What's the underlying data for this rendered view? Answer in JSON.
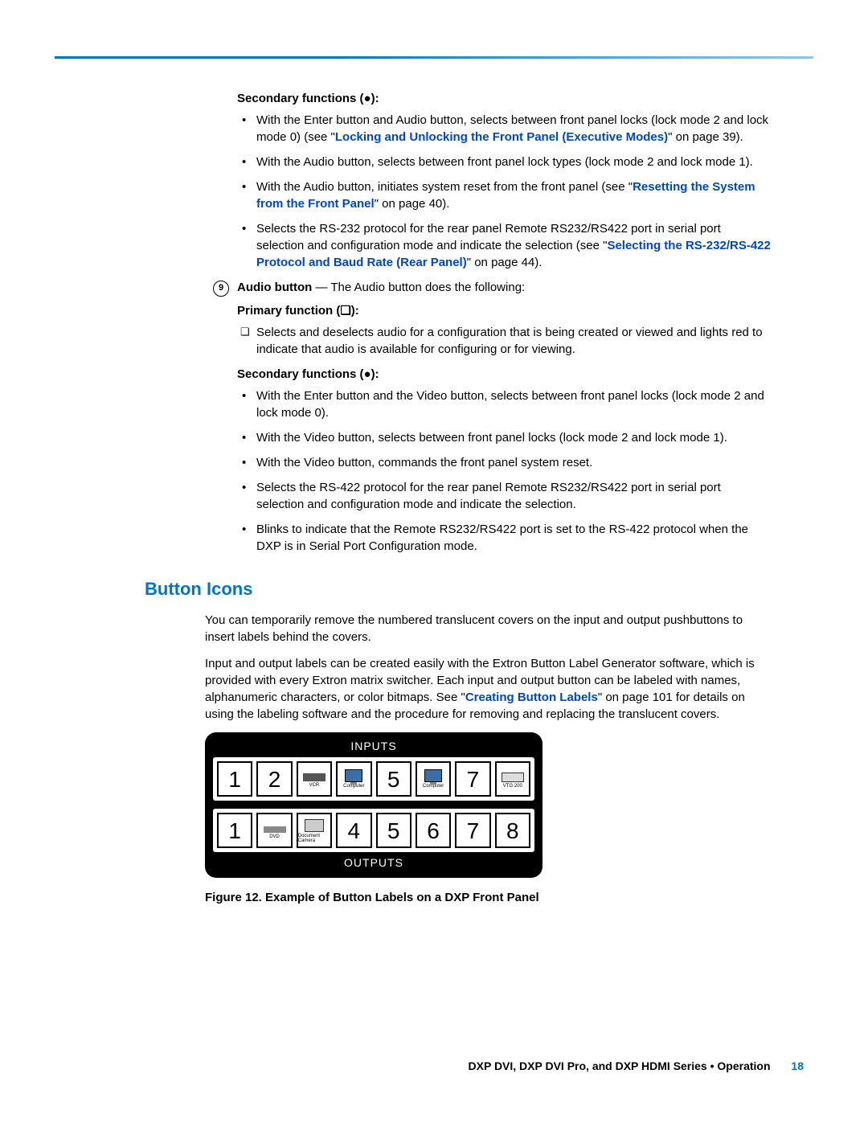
{
  "section1": {
    "heading": "Secondary functions (●):",
    "items": [
      {
        "pre": "With the Enter button and Audio button, selects between front panel locks (lock mode 2 and lock mode 0) (see \"",
        "link": "Locking and Unlocking the Front Panel (Executive Modes)",
        "post": "\" on page 39)."
      },
      {
        "pre": "With the Audio button, selects between front panel lock types (lock mode 2 and lock mode 1).",
        "link": "",
        "post": ""
      },
      {
        "pre": "With the Audio button, initiates system reset from the front panel (see \"",
        "link": "Resetting the System from the Front Panel",
        "post": "\" on page 40)."
      },
      {
        "pre": "Selects the RS-232 protocol for the rear panel Remote RS232/RS422 port in serial port selection and configuration mode and indicate the selection (see \"",
        "link": "Selecting the RS-232/RS-422 Protocol and Baud Rate (Rear Panel)",
        "post": "\" on page 44)."
      }
    ]
  },
  "audio": {
    "num": "9",
    "label": "Audio button",
    "desc": " — The Audio button does the following:"
  },
  "primary": {
    "heading": "Primary function (❏):",
    "item": "Selects and deselects audio for a configuration that is being created or viewed and lights red to indicate that audio is available for configuring or for viewing."
  },
  "section2": {
    "heading": "Secondary functions (●):",
    "items": [
      "With the Enter button and the Video button, selects between front panel locks (lock mode 2 and lock mode 0).",
      "With the Video button, selects between front panel locks (lock mode 2 and lock mode 1).",
      "With the Video button, commands the front panel system reset.",
      "Selects the RS-422 protocol for the rear panel Remote RS232/RS422 port in serial port selection and configuration mode and indicate the selection.",
      "Blinks to indicate that the Remote RS232/RS422 port is set to the RS-422 protocol when the DXP is in Serial Port Configuration mode."
    ]
  },
  "buttonIcons": {
    "heading": "Button Icons",
    "p1": "You can temporarily remove the numbered translucent covers on the input and output pushbuttons to insert labels behind the covers.",
    "p2_pre": "Input and output labels can be created easily with the Extron Button Label Generator software, which is provided with every Extron matrix switcher. Each input and output button can be labeled with names, alphanumeric characters, or color bitmaps. See \"",
    "p2_link": "Creating Button Labels",
    "p2_post": "\" on page 101 for details on using the labeling software and the procedure for removing and replacing the translucent covers."
  },
  "panel": {
    "inputs_label": "INPUTS",
    "outputs_label": "OUTPUTS",
    "inputs": [
      {
        "t": "num",
        "v": "1"
      },
      {
        "t": "num",
        "v": "2"
      },
      {
        "t": "icon",
        "v": "VCR",
        "cls": "icon-vcr"
      },
      {
        "t": "icon",
        "v": "Computer",
        "cls": "icon-monitor"
      },
      {
        "t": "num",
        "v": "5"
      },
      {
        "t": "icon",
        "v": "Computer",
        "cls": "icon-monitor"
      },
      {
        "t": "num",
        "v": "7"
      },
      {
        "t": "icon",
        "v": "VTG 200",
        "cls": "icon-box"
      }
    ],
    "outputs": [
      {
        "t": "num",
        "v": "1"
      },
      {
        "t": "icon",
        "v": "DVD",
        "cls": "icon-dvd"
      },
      {
        "t": "icon",
        "v": "Document Camera",
        "cls": "icon-cam"
      },
      {
        "t": "num",
        "v": "4"
      },
      {
        "t": "num",
        "v": "5"
      },
      {
        "t": "num",
        "v": "6"
      },
      {
        "t": "num",
        "v": "7"
      },
      {
        "t": "num",
        "v": "8"
      }
    ]
  },
  "figure": "Figure 12.  Example of Button Labels on a DXP Front Panel",
  "footer": {
    "text": "DXP DVI, DXP DVI Pro, and DXP HDMI Series • Operation",
    "page": "18"
  }
}
